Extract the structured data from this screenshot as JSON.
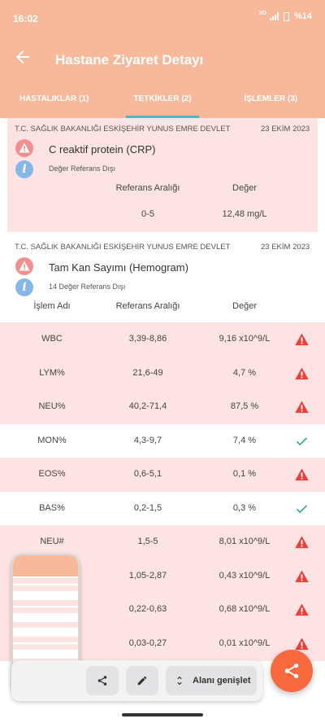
{
  "status_bar": {
    "time": "16:02",
    "network": "3G",
    "battery": "%14"
  },
  "app_bar": {
    "title": "Hastane Ziyaret Detayı"
  },
  "tabs": [
    {
      "label": "HASTALIKLAR (1)",
      "active": false
    },
    {
      "label": "TETKİKLER (2)",
      "active": true
    },
    {
      "label": "İŞLEMLER (3)",
      "active": false
    }
  ],
  "test1": {
    "hospital": "T.C. SAĞLIK BAKANLIĞI ESKİŞEHİR YUNUS EMRE DEVLET",
    "date": "23 EKİM 2023",
    "name": "C reaktif protein (CRP)",
    "status": "Değer Referans Dışı",
    "ref_header": "Referans Aralığı",
    "value_header": "Değer",
    "ref_range": "0-5",
    "value": "12,48 mg/L"
  },
  "test2": {
    "hospital": "T.C. SAĞLIK BAKANLIĞI ESKİŞEHİR YUNUS EMRE DEVLET",
    "date": "23 EKİM 2023",
    "name": "Tam Kan Sayımı (Hemogram)",
    "status": "14 Değer Referans Dışı",
    "col_name": "İşlem Adı",
    "col_ref": "Referans Aralığı",
    "col_value": "Değer",
    "rows": [
      {
        "name": "WBC",
        "ref": "3,39-8,86",
        "value": "9,16 x10^9/L",
        "status": "warning-icon"
      },
      {
        "name": "LYM%",
        "ref": "21,6-49",
        "value": "4,7 %",
        "status": "warning-icon"
      },
      {
        "name": "NEU%",
        "ref": "40,2-71,4",
        "value": "87,5 %",
        "status": "warning-icon"
      },
      {
        "name": "MON%",
        "ref": "4,3-9,7",
        "value": "7,4 %",
        "status": "check-icon"
      },
      {
        "name": "EOS%",
        "ref": "0,6-5,1",
        "value": "0,1 %",
        "status": "warning-icon"
      },
      {
        "name": "BAS%",
        "ref": "0,2-1,5",
        "value": "0,3 %",
        "status": "check-icon"
      },
      {
        "name": "NEU#",
        "ref": "1,5-5",
        "value": "8,01 x10^9/L",
        "status": "warning-icon"
      },
      {
        "name": "",
        "ref": "1,05-2,87",
        "value": "0,43 x10^9/L",
        "status": "warning-icon"
      },
      {
        "name": "",
        "ref": "0,22-0,63",
        "value": "0,68 x10^9/L",
        "status": "warning-icon"
      },
      {
        "name": "",
        "ref": "0,03-0,27",
        "value": "0,01 x10^9/L",
        "status": "warning-icon"
      }
    ],
    "partial_value": "/L"
  },
  "toolbar": {
    "expand_label": "Alanı genişlet"
  },
  "colors": {
    "header": "#f8b99a",
    "out_of_range_bg": "#fde3e3",
    "warning": "#e9413a",
    "ok": "#3aa89a",
    "fab": "#f86a3d"
  }
}
